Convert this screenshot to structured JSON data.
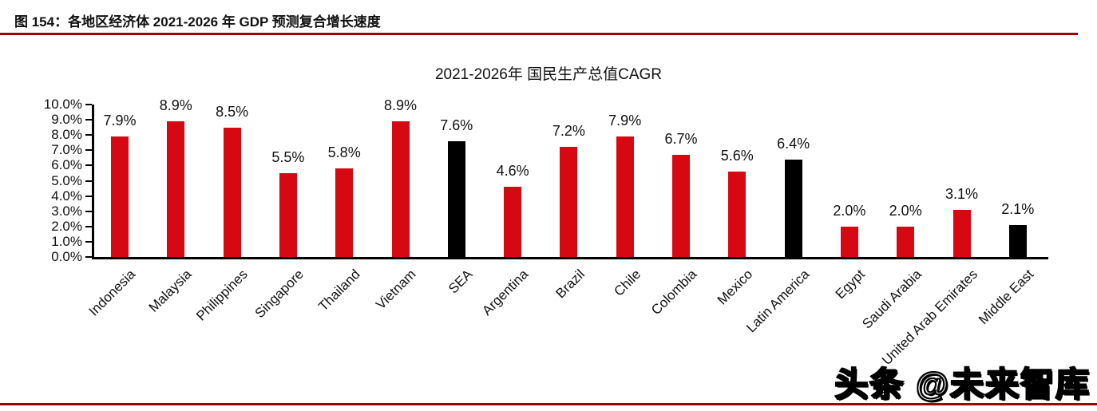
{
  "page": {
    "figure_label": "图 154：各地区经济体 2021-2026 年 GDP 预测复合增长速度",
    "watermark": "头条 @未来智库"
  },
  "colors": {
    "rule_red": "#A00000",
    "bar_red": "#D60812",
    "bar_black": "#000000"
  },
  "chart_data": {
    "type": "bar",
    "title": "2021-2026年 国民生产总值CAGR",
    "categories": [
      "Indonesia",
      "Malaysia",
      "Philippines",
      "Singapore",
      "Thailand",
      "Vietnam",
      "SEA",
      "Argentina",
      "Brazil",
      "Chile",
      "Colombia",
      "Mexico",
      "Latin America",
      "Egypt",
      "Saudi Arabia",
      "United Arab Emirates",
      "Middle East"
    ],
    "values": [
      7.9,
      8.9,
      8.5,
      5.5,
      5.8,
      8.9,
      7.6,
      4.6,
      7.2,
      7.9,
      6.7,
      5.6,
      6.4,
      2.0,
      2.0,
      3.1,
      2.1
    ],
    "data_labels": [
      "7.9%",
      "8.9%",
      "8.5%",
      "5.5%",
      "5.8%",
      "8.9%",
      "7.6%",
      "4.6%",
      "7.2%",
      "7.9%",
      "6.7%",
      "5.6%",
      "6.4%",
      "2.0%",
      "2.0%",
      "3.1%",
      "2.1%"
    ],
    "bar_colors": [
      "#D60812",
      "#D60812",
      "#D60812",
      "#D60812",
      "#D60812",
      "#D60812",
      "#000000",
      "#D60812",
      "#D60812",
      "#D60812",
      "#D60812",
      "#D60812",
      "#000000",
      "#D60812",
      "#D60812",
      "#D60812",
      "#000000"
    ],
    "ylim": [
      0,
      10
    ],
    "ytick_labels": [
      "0.0%",
      "1.0%",
      "2.0%",
      "3.0%",
      "4.0%",
      "5.0%",
      "6.0%",
      "7.0%",
      "8.0%",
      "9.0%",
      "10.0%"
    ],
    "grid": false,
    "legend": "none",
    "xlabel": "",
    "ylabel": ""
  }
}
